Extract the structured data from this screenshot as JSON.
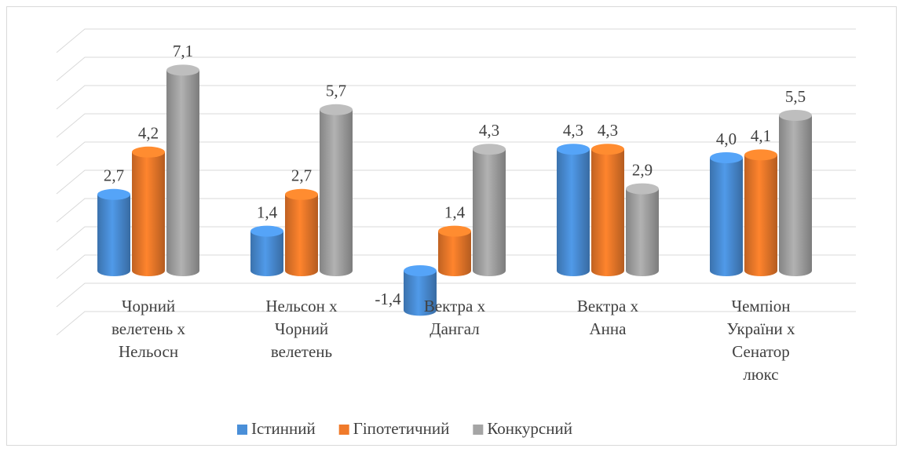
{
  "chart_data": {
    "type": "bar3d",
    "categories": [
      [
        "Чорний",
        "велетень х",
        "Нельосн"
      ],
      [
        "Нельсон х",
        "Чорний",
        "велетень"
      ],
      [
        "Вектра х",
        "Дангал"
      ],
      [
        "Вектра х",
        "Анна"
      ],
      [
        "Чемпіон",
        "України х",
        "Сенатор",
        "люкс"
      ]
    ],
    "series": [
      {
        "name": "Істинний",
        "color": "#4a8fd8",
        "values": [
          2.7,
          1.4,
          -1.4,
          4.3,
          4.0
        ],
        "value_labels": [
          "2,7",
          "1,4",
          "-1,4",
          "4,3",
          "4,0"
        ]
      },
      {
        "name": "Гіпотетичний",
        "color": "#f07a2a",
        "values": [
          4.2,
          2.7,
          1.4,
          4.3,
          4.1
        ],
        "value_labels": [
          "4,2",
          "2,7",
          "1,4",
          "4,3",
          "4,1"
        ]
      },
      {
        "name": "Конкурсний",
        "color": "#a5a5a5",
        "values": [
          7.1,
          5.7,
          4.3,
          2.9,
          5.5
        ],
        "value_labels": [
          "7,1",
          "5,7",
          "4,3",
          "2,9",
          "5,5"
        ]
      }
    ],
    "ylim": [
      -2,
      8
    ],
    "yticks": [
      -2,
      -1,
      0,
      1,
      2,
      3,
      4,
      5,
      6,
      7,
      8
    ],
    "grid": true,
    "legend": "bottom"
  }
}
